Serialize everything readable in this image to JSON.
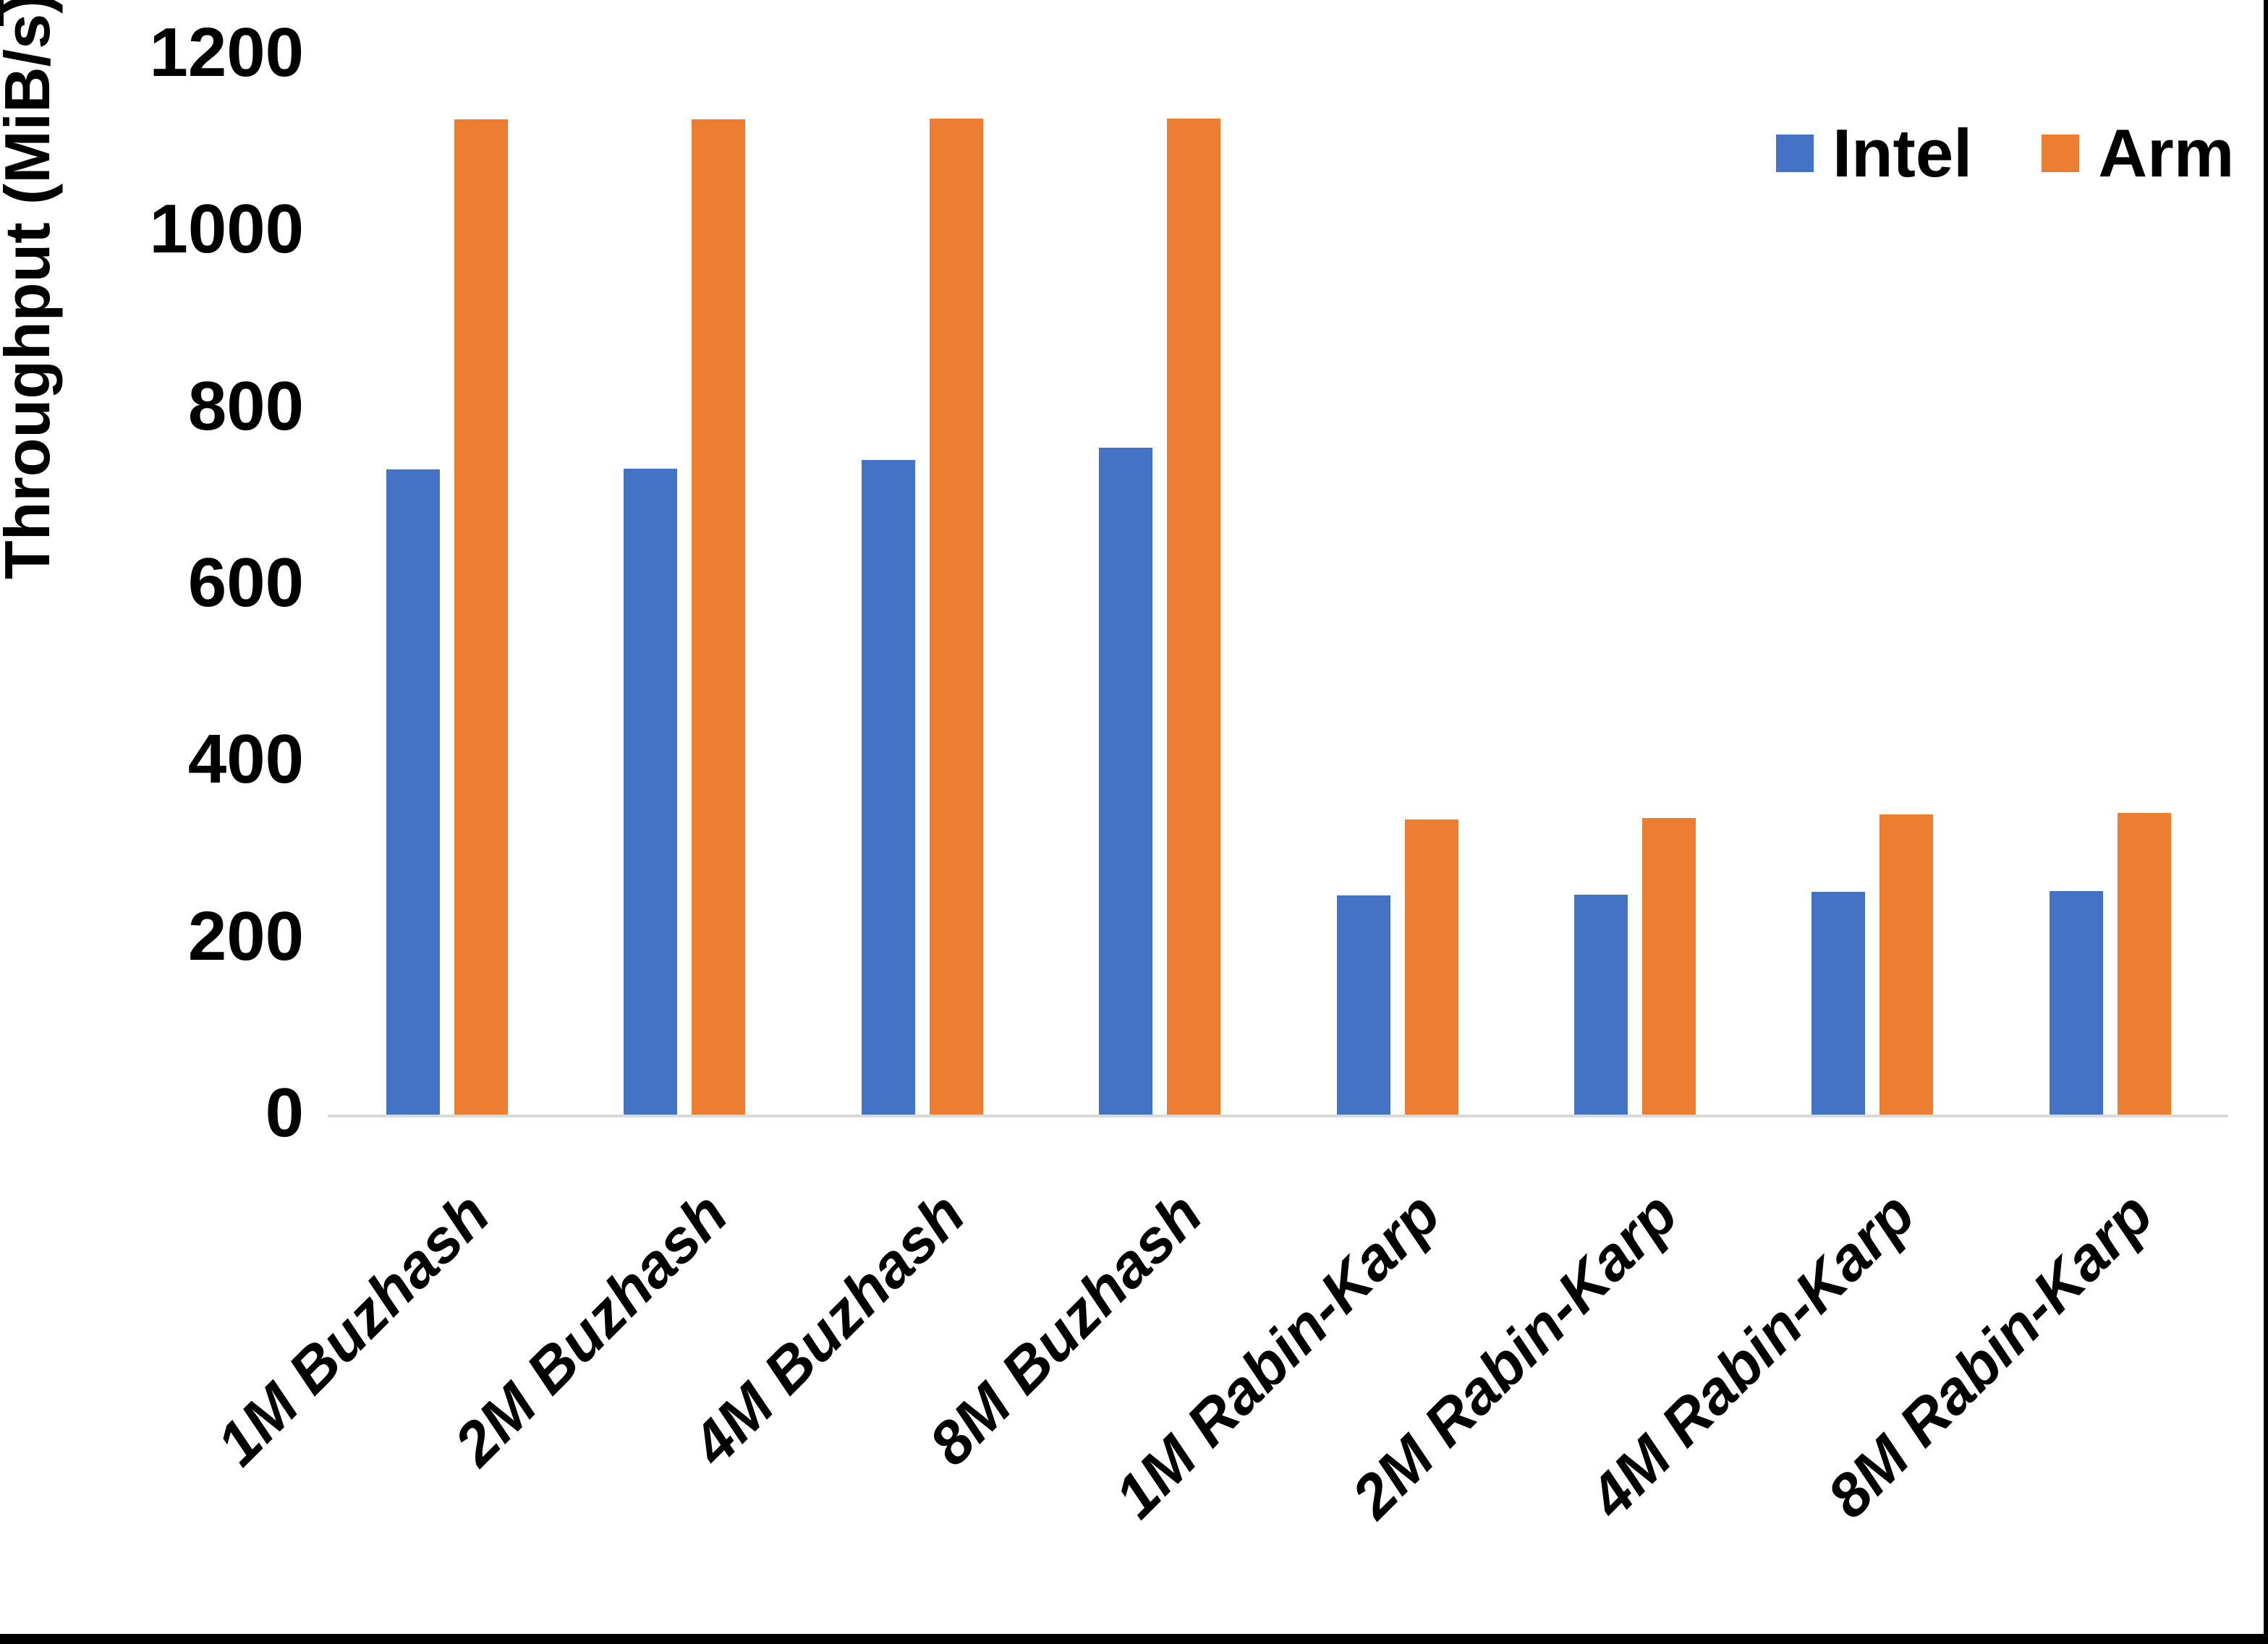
{
  "chart_data": {
    "type": "bar",
    "title": "",
    "xlabel": "",
    "ylabel": "Throughput (MiB/s)",
    "categories": [
      "1M Buzhash",
      "2M Buzhash",
      "4M Buzhash",
      "8M Buzhash",
      "1M Rabin-Karp",
      "2M Rabin-Karp",
      "4M Rabin-Karp",
      "8M Rabin-Karp"
    ],
    "series": [
      {
        "name": "Intel",
        "color": "#4472C4",
        "values": [
          730,
          731,
          741,
          755,
          248,
          249,
          252,
          253
        ]
      },
      {
        "name": "Arm",
        "color": "#ED7D31",
        "values": [
          1126,
          1126,
          1127,
          1127,
          334,
          336,
          340,
          341
        ]
      }
    ],
    "ylim": [
      0,
      1200
    ],
    "y_ticks": [
      0,
      200,
      400,
      600,
      800,
      1000,
      1200
    ],
    "grid": false,
    "legend_position": "top-right",
    "axis_line_color": "#D9D9D9"
  },
  "legend": {
    "items": [
      {
        "label": "Intel",
        "color": "#4472C4"
      },
      {
        "label": "Arm",
        "color": "#ED7D31"
      }
    ]
  },
  "frame": {
    "background": "#ffffff",
    "border_color": "#000000"
  }
}
